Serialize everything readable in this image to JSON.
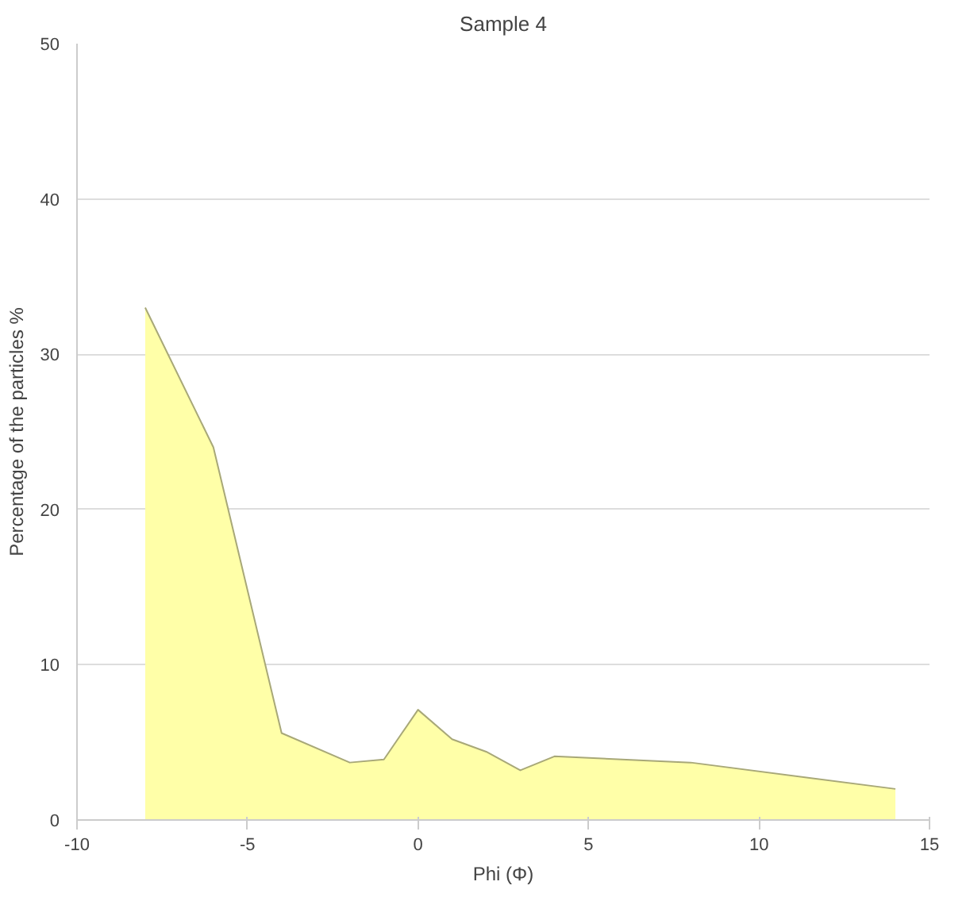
{
  "chart_data": {
    "type": "area",
    "title": "Sample 4",
    "xlabel": "Phi (Φ)",
    "ylabel": "Percentage of the particles %",
    "x": [
      -8,
      -6,
      -4,
      -2,
      -1,
      0,
      1,
      2,
      3,
      4,
      8,
      14
    ],
    "series": [
      {
        "color": "#ffffa8",
        "values": [
          33,
          24,
          5.6,
          3.7,
          3.9,
          7.1,
          5.2,
          4.4,
          3.2,
          4.1,
          3.7,
          2.0
        ]
      }
    ],
    "xlim": [
      -10,
      15
    ],
    "xticks": [
      -10,
      -5,
      0,
      5,
      10,
      15
    ],
    "ylim": [
      0,
      50
    ],
    "yticks": [
      0,
      10,
      20,
      30,
      40,
      50
    ],
    "grid": "y"
  }
}
